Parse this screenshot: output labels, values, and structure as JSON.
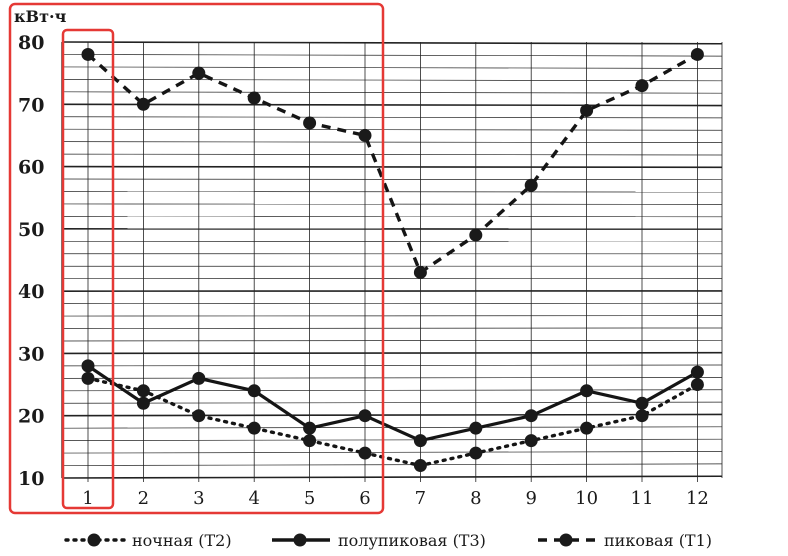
{
  "chart_data": {
    "type": "line",
    "title": "",
    "ylabel": "кВт·ч",
    "xlabel": "",
    "x": [
      1,
      2,
      3,
      4,
      5,
      6,
      7,
      8,
      9,
      10,
      11,
      12
    ],
    "x_tick_labels": [
      "1",
      "2",
      "3",
      "4",
      "5",
      "6",
      "7",
      "8",
      "9",
      "10",
      "11",
      "12"
    ],
    "y_tick_labels": [
      "10",
      "20",
      "30",
      "40",
      "50",
      "60",
      "70",
      "80"
    ],
    "ylim": [
      10,
      80
    ],
    "grid": true,
    "legend_position": "bottom",
    "series": [
      {
        "name": "ночная (T2)",
        "style": "dotted",
        "values": [
          26,
          24,
          20,
          18,
          16,
          14,
          12,
          14,
          16,
          18,
          20,
          25
        ]
      },
      {
        "name": "полупиковая (T3)",
        "style": "solid",
        "values": [
          28,
          22,
          26,
          24,
          18,
          20,
          16,
          18,
          20,
          24,
          22,
          27
        ]
      },
      {
        "name": "пиковая (T1)",
        "style": "dashed",
        "values": [
          78,
          70,
          75,
          71,
          67,
          65,
          43,
          49,
          57,
          69,
          73,
          78
        ]
      }
    ],
    "annotations": {
      "highlight_color": "#e53935",
      "highlight_outer_months": [
        1,
        6
      ],
      "highlight_inner_months": [
        1,
        1
      ]
    }
  }
}
